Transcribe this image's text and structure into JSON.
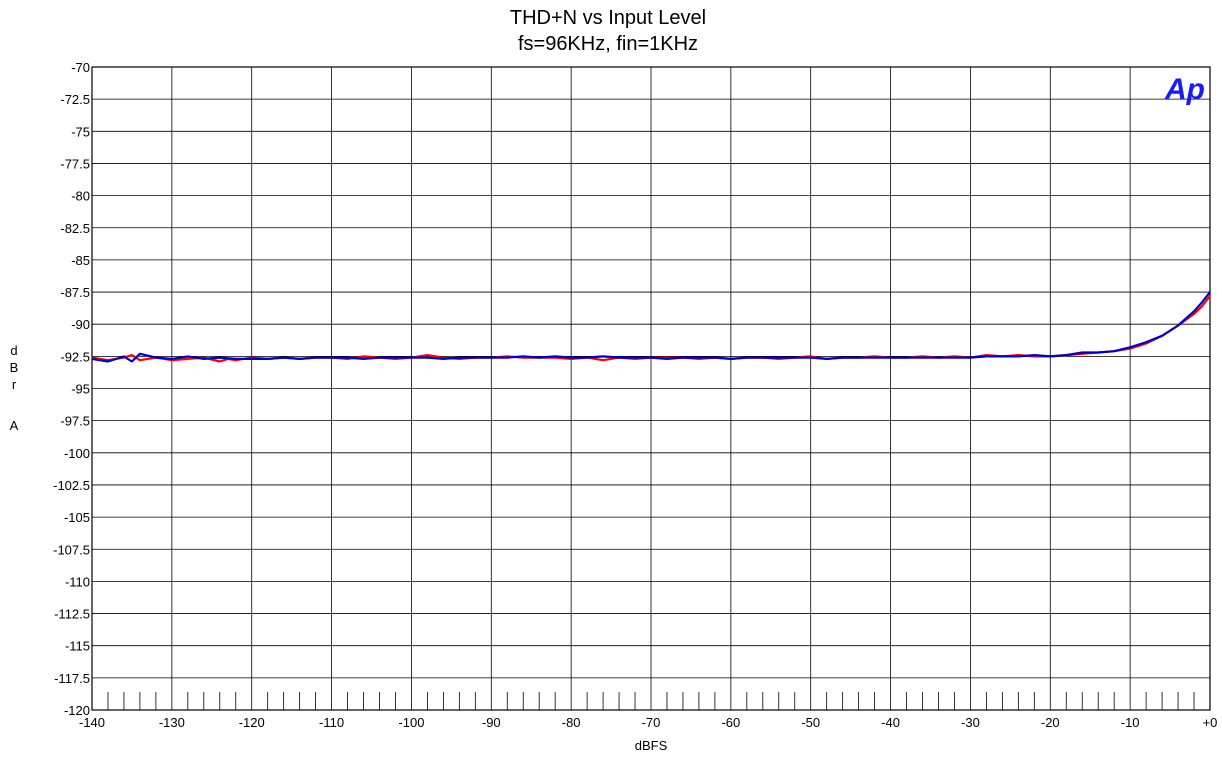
{
  "chart_data": {
    "type": "line",
    "title": "THD+N vs Input Level",
    "subtitle": "fs=96KHz, fin=1KHz",
    "xlabel": "dBFS",
    "ylabel_letters": [
      "d",
      "B",
      "r",
      "",
      "A"
    ],
    "xlim": [
      -140,
      0
    ],
    "ylim": [
      -120,
      -70
    ],
    "x_ticks": [
      -140,
      -130,
      -120,
      -110,
      -100,
      -90,
      -80,
      -70,
      -60,
      -50,
      -40,
      -30,
      -20,
      -10,
      0
    ],
    "x_tick_labels": [
      "-140",
      "-130",
      "-120",
      "-110",
      "-100",
      "-90",
      "-80",
      "-70",
      "-60",
      "-50",
      "-40",
      "-30",
      "-20",
      "-10",
      "+0"
    ],
    "y_ticks": [
      -70,
      -72.5,
      -75,
      -77.5,
      -80,
      -82.5,
      -85,
      -87.5,
      -90,
      -92.5,
      -95,
      -97.5,
      -100,
      -102.5,
      -105,
      -107.5,
      -110,
      -112.5,
      -115,
      -117.5,
      -120
    ],
    "y_tick_labels": [
      "-70",
      "-72.5",
      "-75",
      "-77.5",
      "-80",
      "-82.5",
      "-85",
      "-87.5",
      "-90",
      "-92.5",
      "-95",
      "-97.5",
      "-100",
      "-102.5",
      "-105",
      "-107.5",
      "-110",
      "-112.5",
      "-115",
      "-117.5",
      "-120"
    ],
    "grid": true,
    "logo": "Ap",
    "logo_color": "#1a1aff",
    "series": [
      {
        "color": "#ff0000",
        "x": [
          -140,
          -138,
          -136,
          -135,
          -134,
          -132,
          -130,
          -128,
          -126,
          -124,
          -123,
          -122,
          -120,
          -118,
          -116,
          -114,
          -112,
          -110,
          -108,
          -106,
          -104,
          -102,
          -100,
          -98,
          -96,
          -94,
          -92,
          -90,
          -88,
          -86,
          -84,
          -82,
          -80,
          -78,
          -76,
          -74,
          -72,
          -70,
          -68,
          -66,
          -64,
          -62,
          -60,
          -58,
          -56,
          -54,
          -52,
          -50,
          -48,
          -46,
          -44,
          -42,
          -40,
          -38,
          -36,
          -34,
          -32,
          -30,
          -28,
          -26,
          -24,
          -22,
          -20,
          -18,
          -16,
          -14,
          -12,
          -10,
          -8,
          -6,
          -4,
          -2,
          -1,
          0
        ],
        "y": [
          -92.6,
          -92.8,
          -92.6,
          -92.4,
          -92.8,
          -92.6,
          -92.8,
          -92.7,
          -92.6,
          -92.9,
          -92.7,
          -92.8,
          -92.6,
          -92.7,
          -92.6,
          -92.7,
          -92.6,
          -92.6,
          -92.7,
          -92.5,
          -92.6,
          -92.7,
          -92.6,
          -92.4,
          -92.6,
          -92.7,
          -92.6,
          -92.6,
          -92.5,
          -92.6,
          -92.6,
          -92.6,
          -92.7,
          -92.6,
          -92.8,
          -92.6,
          -92.7,
          -92.6,
          -92.6,
          -92.6,
          -92.7,
          -92.6,
          -92.7,
          -92.6,
          -92.6,
          -92.7,
          -92.6,
          -92.5,
          -92.7,
          -92.6,
          -92.6,
          -92.5,
          -92.6,
          -92.6,
          -92.5,
          -92.6,
          -92.5,
          -92.6,
          -92.4,
          -92.5,
          -92.4,
          -92.5,
          -92.5,
          -92.4,
          -92.3,
          -92.2,
          -92.1,
          -91.9,
          -91.5,
          -90.9,
          -90.1,
          -89.2,
          -88.6,
          -87.8
        ]
      },
      {
        "color": "#0000cc",
        "x": [
          -140,
          -138,
          -136,
          -135,
          -134,
          -132,
          -130,
          -128,
          -126,
          -124,
          -122,
          -120,
          -118,
          -116,
          -114,
          -112,
          -110,
          -108,
          -106,
          -104,
          -102,
          -100,
          -98,
          -96,
          -94,
          -92,
          -90,
          -88,
          -86,
          -84,
          -82,
          -80,
          -78,
          -76,
          -74,
          -72,
          -70,
          -68,
          -66,
          -64,
          -62,
          -60,
          -58,
          -56,
          -54,
          -52,
          -50,
          -48,
          -46,
          -44,
          -42,
          -40,
          -38,
          -36,
          -34,
          -32,
          -30,
          -28,
          -26,
          -24,
          -22,
          -20,
          -18,
          -16,
          -14,
          -12,
          -10,
          -8,
          -6,
          -4,
          -2,
          -1,
          0
        ],
        "y": [
          -92.7,
          -92.9,
          -92.5,
          -92.9,
          -92.3,
          -92.6,
          -92.7,
          -92.5,
          -92.7,
          -92.6,
          -92.7,
          -92.7,
          -92.7,
          -92.6,
          -92.7,
          -92.6,
          -92.6,
          -92.6,
          -92.7,
          -92.6,
          -92.6,
          -92.6,
          -92.6,
          -92.7,
          -92.6,
          -92.6,
          -92.6,
          -92.6,
          -92.5,
          -92.6,
          -92.5,
          -92.6,
          -92.6,
          -92.5,
          -92.6,
          -92.6,
          -92.6,
          -92.7,
          -92.6,
          -92.6,
          -92.6,
          -92.7,
          -92.6,
          -92.6,
          -92.6,
          -92.6,
          -92.6,
          -92.7,
          -92.6,
          -92.6,
          -92.6,
          -92.6,
          -92.6,
          -92.6,
          -92.6,
          -92.6,
          -92.6,
          -92.5,
          -92.5,
          -92.5,
          -92.4,
          -92.5,
          -92.4,
          -92.2,
          -92.2,
          -92.1,
          -91.8,
          -91.4,
          -90.9,
          -90.1,
          -89.0,
          -88.3,
          -87.5
        ]
      }
    ]
  }
}
